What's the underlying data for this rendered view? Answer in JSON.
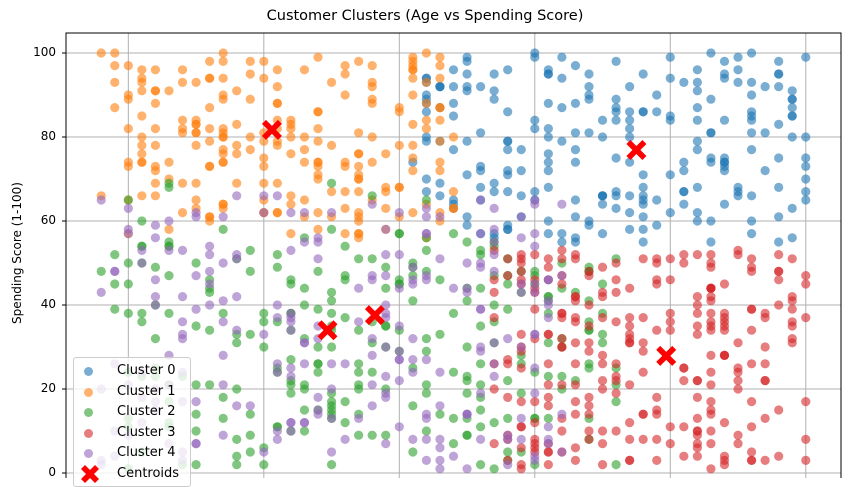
{
  "chart_data": {
    "type": "scatter",
    "title": "Customer Clusters (Age vs Spending Score)",
    "xlabel": "",
    "ylabel": "Spending Score (1-100)",
    "xlim": [
      15.4,
      72.6
    ],
    "ylim": [
      0,
      105
    ],
    "x_gridlines": [
      20,
      30,
      40,
      50,
      60,
      70
    ],
    "yticks": [
      0,
      20,
      40,
      60,
      80,
      100
    ],
    "grid": true,
    "legend_position": "lower left",
    "series": [
      {
        "name": "Cluster 0",
        "color": "#1f77b4",
        "alpha": 0.6,
        "region": {
          "age": [
            41,
            70
          ],
          "score": [
            54,
            100
          ]
        },
        "count": 230
      },
      {
        "name": "Cluster 1",
        "color": "#ff7f0e",
        "alpha": 0.6,
        "region": {
          "age": [
            18,
            44
          ],
          "score": [
            56,
            100
          ]
        },
        "count": 220
      },
      {
        "name": "Cluster 2",
        "color": "#2ca02c",
        "alpha": 0.6,
        "region": {
          "age": [
            18,
            56
          ],
          "score": [
            1,
            70
          ]
        },
        "count": 260
      },
      {
        "name": "Cluster 3",
        "color": "#d62728",
        "alpha": 0.6,
        "region": {
          "age": [
            47,
            70
          ],
          "score": [
            1,
            53
          ]
        },
        "count": 260
      },
      {
        "name": "Cluster 4",
        "color": "#9467bd",
        "alpha": 0.6,
        "region": {
          "age": [
            18,
            52
          ],
          "score": [
            1,
            66
          ]
        },
        "count": 230
      }
    ],
    "centroids": {
      "name": "Centroids",
      "color": "#ff0000",
      "marker": "X",
      "points": [
        {
          "age": 30.6,
          "score": 81.7
        },
        {
          "age": 57.5,
          "score": 76.9
        },
        {
          "age": 34.7,
          "score": 34.0
        },
        {
          "age": 38.2,
          "score": 37.6
        },
        {
          "age": 59.7,
          "score": 27.9
        }
      ]
    }
  },
  "legend": {
    "items": [
      {
        "label": "Cluster 0",
        "color": "#1f77b4"
      },
      {
        "label": "Cluster 1",
        "color": "#ff7f0e"
      },
      {
        "label": "Cluster 2",
        "color": "#2ca02c"
      },
      {
        "label": "Cluster 3",
        "color": "#d62728"
      },
      {
        "label": "Cluster 4",
        "color": "#9467bd"
      },
      {
        "label": "Centroids",
        "color": "#ff0000"
      }
    ]
  },
  "yticks": {
    "labels": [
      "0",
      "20",
      "40",
      "60",
      "80",
      "100"
    ]
  }
}
